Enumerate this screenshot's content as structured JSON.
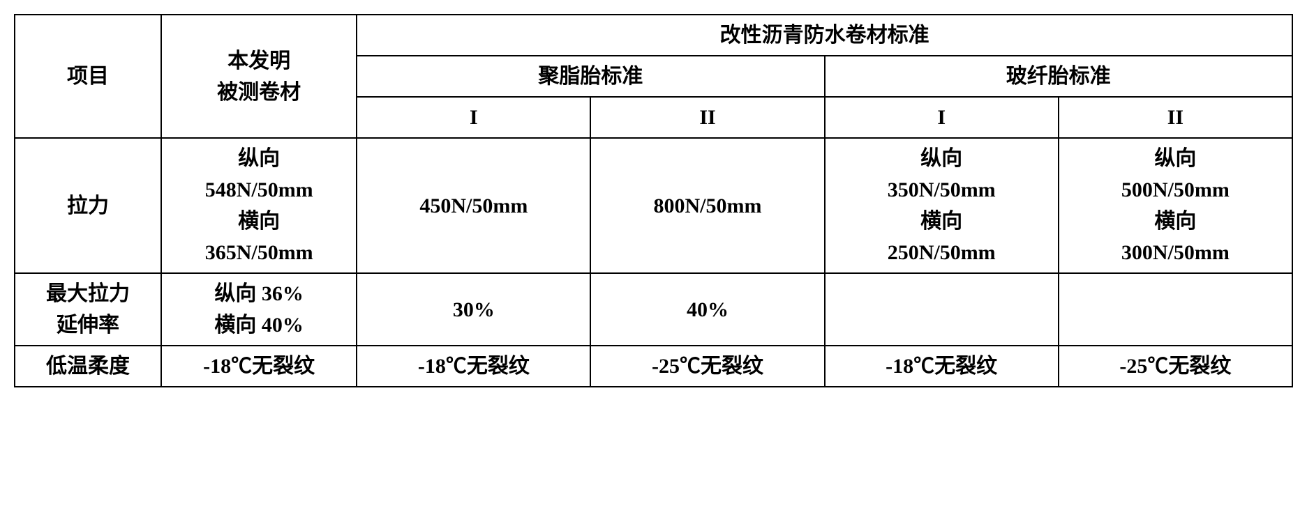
{
  "header": {
    "project": "项目",
    "tested": "本发明\n被测卷材",
    "standard_group": "改性沥青防水卷材标准",
    "poly_group": "聚脂胎标准",
    "glass_group": "玻纤胎标准",
    "col_I": "I",
    "col_II": "II"
  },
  "rows": {
    "tension": {
      "label": "拉力",
      "tested": "纵向\n548N/50mm\n横向\n365N/50mm",
      "poly_I": "450N/50mm",
      "poly_II": "800N/50mm",
      "glass_I": "纵向\n350N/50mm\n横向\n250N/50mm",
      "glass_II": "纵向\n500N/50mm\n横向\n300N/50mm"
    },
    "elongation": {
      "label": "最大拉力\n延伸率",
      "tested": "纵向 36%\n横向 40%",
      "poly_I": "30%",
      "poly_II": "40%",
      "glass_I": "",
      "glass_II": ""
    },
    "low_temp": {
      "label": "低温柔度",
      "tested": "-18℃无裂纹",
      "poly_I": "-18℃无裂纹",
      "poly_II": "-25℃无裂纹",
      "glass_I": "-18℃无裂纹",
      "glass_II": "-25℃无裂纹"
    }
  }
}
